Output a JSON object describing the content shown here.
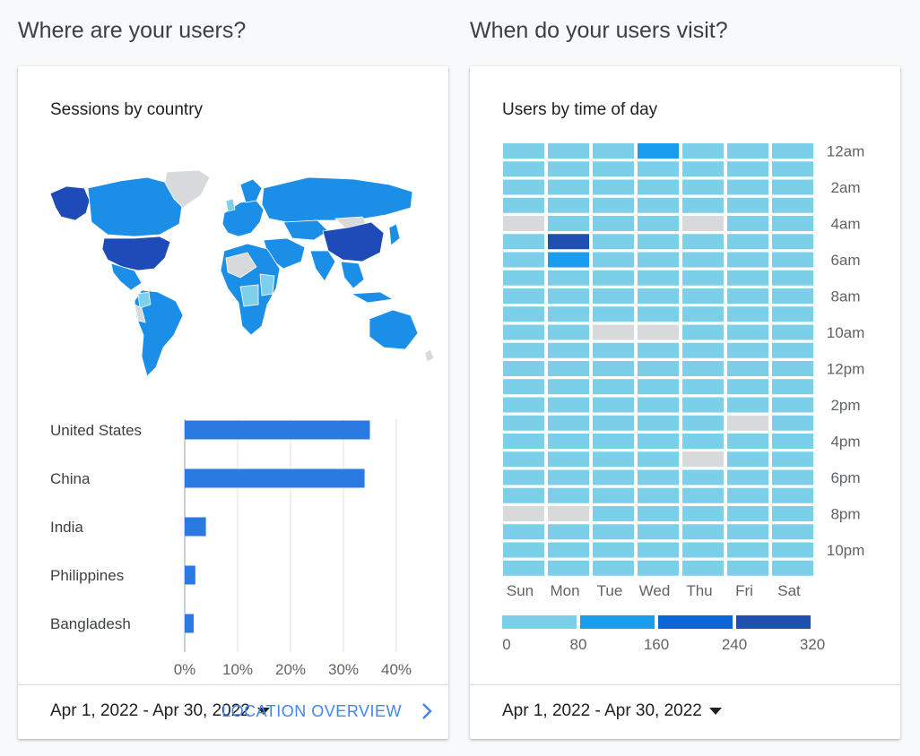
{
  "left_section": {
    "title": "Where are your users?",
    "card_title": "Sessions by country",
    "date_range": "Apr 1, 2022 - Apr 30, 2022",
    "footer_link": "LOCATION OVERVIEW"
  },
  "right_section": {
    "title": "When do your users visit?",
    "card_title": "Users by time of day",
    "date_range": "Apr 1, 2022 - Apr 30, 2022"
  },
  "colors": {
    "bar": "#2a7ae2",
    "map_high": "#1e4bb8",
    "map_mid": "#1b8ee8",
    "map_low": "#7fcfe8",
    "map_none": "#d8d9db",
    "scale": [
      "#7ccfe8",
      "#1a9cef",
      "#0b66da",
      "#1f4fb0"
    ],
    "no_data": "#d8d9db"
  },
  "chart_data": [
    {
      "type": "bar",
      "title": "Sessions by country",
      "categories": [
        "United States",
        "China",
        "India",
        "Philippines",
        "Bangladesh"
      ],
      "values": [
        35,
        34,
        4,
        2,
        1.7
      ],
      "xlim": [
        0,
        40
      ],
      "xticks": [
        "0%",
        "10%",
        "20%",
        "30%",
        "40%"
      ],
      "xtick_values": [
        0,
        10,
        20,
        30,
        40
      ],
      "grid": true
    },
    {
      "type": "heatmap",
      "title": "Users by time of day",
      "days": [
        "Sun",
        "Mon",
        "Tue",
        "Wed",
        "Thu",
        "Fri",
        "Sat"
      ],
      "hour_labels": [
        "12am",
        "2am",
        "4am",
        "6am",
        "8am",
        "10am",
        "12pm",
        "2pm",
        "4pm",
        "6pm",
        "8pm",
        "10pm"
      ],
      "scale_labels": [
        "0",
        "80",
        "160",
        "240",
        "320"
      ],
      "scale_thresholds": [
        0,
        80,
        160,
        240,
        320
      ],
      "values": [
        [
          40,
          40,
          40,
          120,
          40,
          40,
          40
        ],
        [
          40,
          40,
          40,
          40,
          40,
          40,
          40
        ],
        [
          40,
          40,
          40,
          40,
          40,
          40,
          40
        ],
        [
          40,
          40,
          40,
          40,
          40,
          40,
          40
        ],
        [
          0,
          40,
          40,
          40,
          0,
          40,
          40
        ],
        [
          40,
          280,
          40,
          40,
          40,
          40,
          40
        ],
        [
          40,
          120,
          40,
          40,
          40,
          40,
          40
        ],
        [
          40,
          40,
          40,
          40,
          40,
          40,
          40
        ],
        [
          40,
          40,
          40,
          40,
          40,
          40,
          40
        ],
        [
          40,
          40,
          40,
          40,
          40,
          40,
          40
        ],
        [
          40,
          40,
          0,
          0,
          40,
          40,
          40
        ],
        [
          40,
          40,
          40,
          40,
          40,
          40,
          40
        ],
        [
          40,
          40,
          40,
          40,
          40,
          40,
          40
        ],
        [
          40,
          40,
          40,
          40,
          40,
          40,
          40
        ],
        [
          40,
          40,
          40,
          40,
          40,
          40,
          40
        ],
        [
          40,
          40,
          40,
          40,
          40,
          0,
          40
        ],
        [
          40,
          40,
          40,
          40,
          40,
          40,
          40
        ],
        [
          40,
          40,
          40,
          40,
          0,
          40,
          40
        ],
        [
          40,
          40,
          40,
          40,
          40,
          40,
          40
        ],
        [
          40,
          40,
          40,
          40,
          40,
          40,
          40
        ],
        [
          0,
          0,
          40,
          40,
          40,
          40,
          40
        ],
        [
          40,
          40,
          40,
          40,
          40,
          40,
          40
        ],
        [
          40,
          40,
          40,
          40,
          40,
          40,
          40
        ],
        [
          40,
          40,
          40,
          40,
          40,
          40,
          40
        ]
      ]
    }
  ]
}
